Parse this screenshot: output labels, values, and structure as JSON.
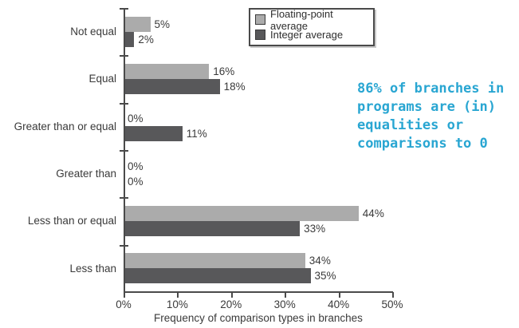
{
  "chart_data": {
    "type": "bar",
    "orientation": "horizontal",
    "categories": [
      "Not equal",
      "Equal",
      "Greater than or equal",
      "Greater than",
      "Less than or equal",
      "Less than"
    ],
    "series": [
      {
        "name": "Floating-point average",
        "color": "#ababab",
        "values": [
          5,
          16,
          0,
          0,
          44,
          34
        ]
      },
      {
        "name": "Integer average",
        "color": "#58585a",
        "values": [
          2,
          18,
          11,
          0,
          33,
          35
        ]
      }
    ],
    "value_suffix": "%",
    "xlabel": "Frequency of comparison types in branches",
    "x_ticks": [
      "0%",
      "10%",
      "20%",
      "30%",
      "40%",
      "50%"
    ],
    "xlim": [
      0,
      50
    ],
    "grid": false,
    "legend_position": "top-center",
    "axis_color": "#4a4a4a",
    "annotation": {
      "text": "86% of branches in\nprograms are (in)\nequalities or\ncomparisons to 0",
      "color": "#29a6d2"
    }
  }
}
